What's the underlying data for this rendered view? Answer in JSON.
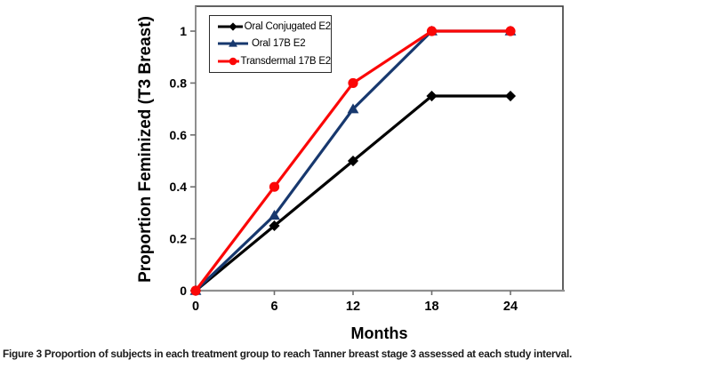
{
  "figure": {
    "caption_prefix": "Figure 3",
    "caption_text": "Proportion of subjects in each treatment group to reach Tanner breast stage 3 assessed at each study interval."
  },
  "chart_data": {
    "type": "line",
    "title": "",
    "xlabel": "Months",
    "ylabel": "Proportion Feminized (T3 Breast)",
    "x": [
      0,
      6,
      12,
      18,
      24
    ],
    "x_tick_labels": [
      "0",
      "6",
      "12",
      "18",
      "24"
    ],
    "y_tick_values": [
      0,
      0.2,
      0.4,
      0.6,
      0.8,
      1
    ],
    "y_tick_labels": [
      "0",
      "0.2",
      "0.4",
      "0.6",
      "0.8",
      "1"
    ],
    "xlim": [
      0,
      28
    ],
    "ylim": [
      0,
      1.096
    ],
    "grid": false,
    "legend_position": "top-left-inside",
    "axis_color": "#8f8f8f",
    "border_color": "#3a3a3a",
    "series": [
      {
        "name": "Oral Conjugated E2",
        "color": "#000000",
        "marker": "diamond",
        "values": [
          0,
          0.25,
          0.5,
          0.75,
          0.75
        ]
      },
      {
        "name": "Oral 17B E2",
        "color": "#17386E",
        "marker": "triangle",
        "values": [
          0,
          0.29,
          0.7,
          1,
          1
        ]
      },
      {
        "name": "Transdermal 17B E2",
        "color": "#FB0707",
        "marker": "circle",
        "values": [
          0,
          0.4,
          0.8,
          1,
          1
        ]
      }
    ]
  }
}
